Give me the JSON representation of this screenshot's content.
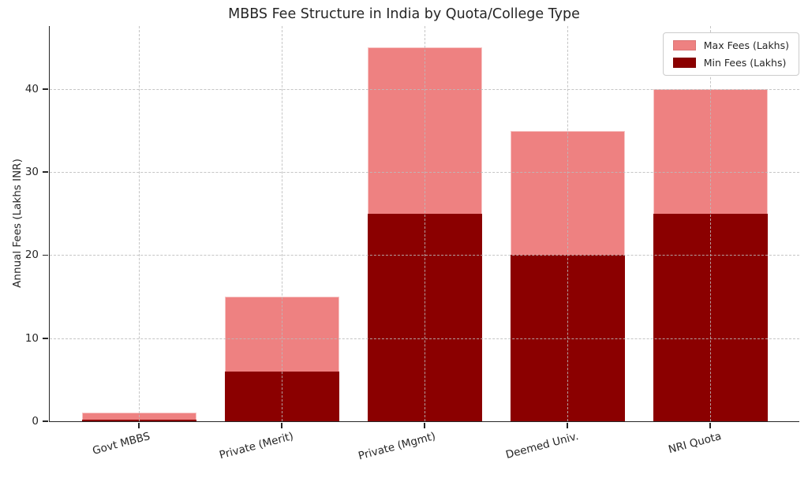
{
  "chart_data": {
    "type": "bar",
    "title": "MBBS Fee Structure in India by Quota/College Type",
    "ylabel": "Annual Fees (Lakhs INR)",
    "xlabel": "",
    "categories": [
      "Govt MBBS",
      "Private (Merit)",
      "Private (Mgmt)",
      "Deemed Univ.",
      "NRI Quota"
    ],
    "series": [
      {
        "name": "Max Fees (Lakhs)",
        "color": "#ee8181",
        "values": [
          1,
          15,
          45,
          35,
          40
        ]
      },
      {
        "name": "Min Fees (Lakhs)",
        "color": "#8b0000",
        "values": [
          0.2,
          6,
          25,
          20,
          25
        ]
      }
    ],
    "yticks": [
      0,
      10,
      20,
      30,
      40
    ],
    "ylim": [
      0,
      47.6
    ],
    "grid": true,
    "grid_style": "dashed",
    "grid_over_bars": true,
    "bar_mode": "overlaid",
    "x_tick_rotation_deg": 15,
    "legend_position": "upper-right"
  },
  "colors": {
    "max_fees": "#ee8181",
    "min_fees": "#8b0000",
    "grid": "#bbbbbb",
    "axis": "#262626",
    "text": "#262626",
    "background": "#ffffff",
    "legend_border": "#cccccc"
  }
}
